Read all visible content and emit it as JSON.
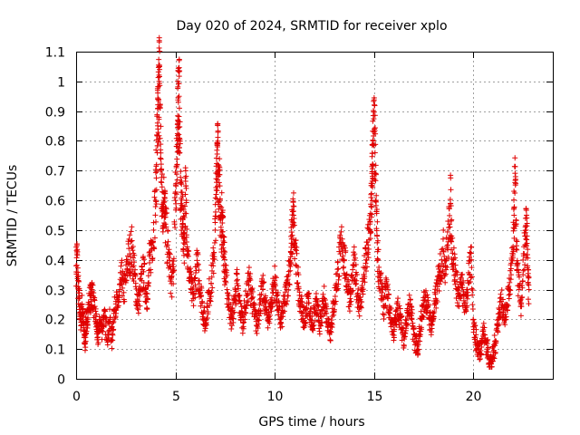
{
  "chart_data": {
    "type": "scatter",
    "title": "Day 020 of 2024, SRMTID for receiver xplo",
    "xlabel": "GPS time / hours",
    "ylabel": "SRMTID / TECUs",
    "xlim": [
      0,
      24
    ],
    "ylim": [
      0,
      1.1
    ],
    "xticks": [
      0,
      5,
      10,
      15,
      20
    ],
    "xtick_labels": [
      "0",
      "5",
      "10",
      "15",
      "20"
    ],
    "yticks": [
      0,
      0.1,
      0.2,
      0.3,
      0.4,
      0.5,
      0.6,
      0.7,
      0.8,
      0.9,
      1,
      1.1
    ],
    "ytick_labels": [
      "0",
      "0.1",
      "0.2",
      "0.3",
      "0.4",
      "0.5",
      "0.6",
      "0.7",
      "0.8",
      "0.9",
      "1",
      "1.1"
    ],
    "grid": true,
    "marker": "+",
    "color": "#e00000",
    "x_range": [
      0,
      22.8
    ],
    "series": [
      {
        "name": "SRMTID",
        "points": [
          [
            0.0,
            0.38
          ],
          [
            0.05,
            0.42
          ],
          [
            0.1,
            0.31
          ],
          [
            0.15,
            0.27
          ],
          [
            0.2,
            0.22
          ],
          [
            0.25,
            0.19
          ],
          [
            0.3,
            0.25
          ],
          [
            0.35,
            0.21
          ],
          [
            0.4,
            0.15
          ],
          [
            0.45,
            0.12
          ],
          [
            0.5,
            0.18
          ],
          [
            0.55,
            0.2
          ],
          [
            0.6,
            0.23
          ],
          [
            0.7,
            0.28
          ],
          [
            0.75,
            0.26
          ],
          [
            0.8,
            0.3
          ],
          [
            0.9,
            0.24
          ],
          [
            1.0,
            0.2
          ],
          [
            1.05,
            0.16
          ],
          [
            1.1,
            0.14
          ],
          [
            1.2,
            0.19
          ],
          [
            1.3,
            0.17
          ],
          [
            1.4,
            0.21
          ],
          [
            1.5,
            0.18
          ],
          [
            1.6,
            0.15
          ],
          [
            1.7,
            0.2
          ],
          [
            1.8,
            0.13
          ],
          [
            1.9,
            0.22
          ],
          [
            2.0,
            0.26
          ],
          [
            2.1,
            0.24
          ],
          [
            2.2,
            0.3
          ],
          [
            2.3,
            0.34
          ],
          [
            2.4,
            0.29
          ],
          [
            2.5,
            0.33
          ],
          [
            2.6,
            0.4
          ],
          [
            2.7,
            0.42
          ],
          [
            2.8,
            0.44
          ],
          [
            2.9,
            0.38
          ],
          [
            3.0,
            0.31
          ],
          [
            3.1,
            0.25
          ],
          [
            3.2,
            0.28
          ],
          [
            3.3,
            0.33
          ],
          [
            3.4,
            0.36
          ],
          [
            3.5,
            0.3
          ],
          [
            3.6,
            0.27
          ],
          [
            3.7,
            0.39
          ],
          [
            3.8,
            0.45
          ],
          [
            3.9,
            0.5
          ],
          [
            4.0,
            0.6
          ],
          [
            4.05,
            0.72
          ],
          [
            4.1,
            0.86
          ],
          [
            4.12,
            0.84
          ],
          [
            4.15,
            0.94
          ],
          [
            4.18,
            1.0
          ],
          [
            4.2,
            1.04
          ],
          [
            4.25,
            0.77
          ],
          [
            4.3,
            0.66
          ],
          [
            4.35,
            0.58
          ],
          [
            4.4,
            0.6
          ],
          [
            4.45,
            0.61
          ],
          [
            4.5,
            0.52
          ],
          [
            4.6,
            0.45
          ],
          [
            4.7,
            0.38
          ],
          [
            4.8,
            0.32
          ],
          [
            4.9,
            0.36
          ],
          [
            5.0,
            0.6
          ],
          [
            5.05,
            0.71
          ],
          [
            5.1,
            0.8
          ],
          [
            5.12,
            0.87
          ],
          [
            5.15,
            0.93
          ],
          [
            5.18,
            0.95
          ],
          [
            5.2,
            0.91
          ],
          [
            5.25,
            0.66
          ],
          [
            5.3,
            0.57
          ],
          [
            5.35,
            0.54
          ],
          [
            5.4,
            0.49
          ],
          [
            5.45,
            0.47
          ],
          [
            5.5,
            0.62
          ],
          [
            5.55,
            0.6
          ],
          [
            5.6,
            0.42
          ],
          [
            5.7,
            0.36
          ],
          [
            5.8,
            0.3
          ],
          [
            5.9,
            0.27
          ],
          [
            6.0,
            0.34
          ],
          [
            6.1,
            0.38
          ],
          [
            6.2,
            0.33
          ],
          [
            6.3,
            0.28
          ],
          [
            6.4,
            0.22
          ],
          [
            6.5,
            0.18
          ],
          [
            6.6,
            0.24
          ],
          [
            6.7,
            0.29
          ],
          [
            6.8,
            0.32
          ],
          [
            6.9,
            0.38
          ],
          [
            7.0,
            0.5
          ],
          [
            7.05,
            0.62
          ],
          [
            7.1,
            0.79
          ],
          [
            7.12,
            0.78
          ],
          [
            7.15,
            0.72
          ],
          [
            7.2,
            0.66
          ],
          [
            7.25,
            0.58
          ],
          [
            7.3,
            0.5
          ],
          [
            7.35,
            0.55
          ],
          [
            7.4,
            0.48
          ],
          [
            7.45,
            0.42
          ],
          [
            7.5,
            0.36
          ],
          [
            7.6,
            0.3
          ],
          [
            7.7,
            0.25
          ],
          [
            7.8,
            0.2
          ],
          [
            7.9,
            0.22
          ],
          [
            8.0,
            0.28
          ],
          [
            8.1,
            0.32
          ],
          [
            8.2,
            0.26
          ],
          [
            8.3,
            0.22
          ],
          [
            8.4,
            0.19
          ],
          [
            8.5,
            0.24
          ],
          [
            8.6,
            0.28
          ],
          [
            8.7,
            0.33
          ],
          [
            8.8,
            0.3
          ],
          [
            8.9,
            0.25
          ],
          [
            9.0,
            0.21
          ],
          [
            9.1,
            0.18
          ],
          [
            9.2,
            0.23
          ],
          [
            9.3,
            0.27
          ],
          [
            9.4,
            0.3
          ],
          [
            9.5,
            0.26
          ],
          [
            9.6,
            0.22
          ],
          [
            9.7,
            0.2
          ],
          [
            9.8,
            0.25
          ],
          [
            9.9,
            0.29
          ],
          [
            10.0,
            0.33
          ],
          [
            10.1,
            0.28
          ],
          [
            10.2,
            0.23
          ],
          [
            10.3,
            0.19
          ],
          [
            10.4,
            0.22
          ],
          [
            10.5,
            0.26
          ],
          [
            10.6,
            0.3
          ],
          [
            10.7,
            0.35
          ],
          [
            10.8,
            0.41
          ],
          [
            10.85,
            0.47
          ],
          [
            10.9,
            0.52
          ],
          [
            10.95,
            0.55
          ],
          [
            11.0,
            0.44
          ],
          [
            11.1,
            0.38
          ],
          [
            11.2,
            0.31
          ],
          [
            11.3,
            0.26
          ],
          [
            11.4,
            0.22
          ],
          [
            11.5,
            0.19
          ],
          [
            11.6,
            0.24
          ],
          [
            11.7,
            0.27
          ],
          [
            11.8,
            0.21
          ],
          [
            11.9,
            0.18
          ],
          [
            12.0,
            0.22
          ],
          [
            12.1,
            0.25
          ],
          [
            12.2,
            0.21
          ],
          [
            12.3,
            0.18
          ],
          [
            12.4,
            0.23
          ],
          [
            12.5,
            0.27
          ],
          [
            12.6,
            0.22
          ],
          [
            12.7,
            0.19
          ],
          [
            12.8,
            0.16
          ],
          [
            12.9,
            0.21
          ],
          [
            13.0,
            0.26
          ],
          [
            13.1,
            0.32
          ],
          [
            13.2,
            0.37
          ],
          [
            13.3,
            0.42
          ],
          [
            13.4,
            0.47
          ],
          [
            13.5,
            0.4
          ],
          [
            13.6,
            0.35
          ],
          [
            13.7,
            0.3
          ],
          [
            13.8,
            0.27
          ],
          [
            13.9,
            0.33
          ],
          [
            14.0,
            0.38
          ],
          [
            14.1,
            0.32
          ],
          [
            14.2,
            0.28
          ],
          [
            14.3,
            0.24
          ],
          [
            14.4,
            0.3
          ],
          [
            14.5,
            0.35
          ],
          [
            14.6,
            0.4
          ],
          [
            14.7,
            0.45
          ],
          [
            14.8,
            0.5
          ],
          [
            14.85,
            0.58
          ],
          [
            14.9,
            0.65
          ],
          [
            14.92,
            0.72
          ],
          [
            14.95,
            0.8
          ],
          [
            15.0,
            0.83
          ],
          [
            15.05,
            0.76
          ],
          [
            15.1,
            0.6
          ],
          [
            15.15,
            0.48
          ],
          [
            15.2,
            0.4
          ],
          [
            15.3,
            0.33
          ],
          [
            15.4,
            0.28
          ],
          [
            15.5,
            0.24
          ],
          [
            15.6,
            0.3
          ],
          [
            15.7,
            0.27
          ],
          [
            15.8,
            0.22
          ],
          [
            15.9,
            0.19
          ],
          [
            16.0,
            0.16
          ],
          [
            16.1,
            0.2
          ],
          [
            16.2,
            0.24
          ],
          [
            16.3,
            0.21
          ],
          [
            16.4,
            0.17
          ],
          [
            16.5,
            0.14
          ],
          [
            16.6,
            0.18
          ],
          [
            16.7,
            0.22
          ],
          [
            16.8,
            0.25
          ],
          [
            16.9,
            0.2
          ],
          [
            17.0,
            0.15
          ],
          [
            17.1,
            0.12
          ],
          [
            17.2,
            0.08
          ],
          [
            17.3,
            0.16
          ],
          [
            17.4,
            0.21
          ],
          [
            17.5,
            0.25
          ],
          [
            17.6,
            0.28
          ],
          [
            17.7,
            0.24
          ],
          [
            17.8,
            0.2
          ],
          [
            17.9,
            0.18
          ],
          [
            18.0,
            0.22
          ],
          [
            18.1,
            0.27
          ],
          [
            18.2,
            0.31
          ],
          [
            18.3,
            0.36
          ],
          [
            18.4,
            0.4
          ],
          [
            18.5,
            0.43
          ],
          [
            18.6,
            0.38
          ],
          [
            18.7,
            0.45
          ],
          [
            18.8,
            0.52
          ],
          [
            18.85,
            0.59
          ],
          [
            18.9,
            0.48
          ],
          [
            19.0,
            0.4
          ],
          [
            19.1,
            0.35
          ],
          [
            19.2,
            0.3
          ],
          [
            19.3,
            0.27
          ],
          [
            19.4,
            0.32
          ],
          [
            19.5,
            0.28
          ],
          [
            19.6,
            0.24
          ],
          [
            19.7,
            0.3
          ],
          [
            19.8,
            0.35
          ],
          [
            19.9,
            0.4
          ],
          [
            20.0,
            0.2
          ],
          [
            20.1,
            0.14
          ],
          [
            20.2,
            0.11
          ],
          [
            20.3,
            0.09
          ],
          [
            20.4,
            0.12
          ],
          [
            20.5,
            0.16
          ],
          [
            20.6,
            0.13
          ],
          [
            20.7,
            0.1
          ],
          [
            20.8,
            0.07
          ],
          [
            20.9,
            0.05
          ],
          [
            21.0,
            0.08
          ],
          [
            21.1,
            0.12
          ],
          [
            21.2,
            0.18
          ],
          [
            21.3,
            0.22
          ],
          [
            21.4,
            0.26
          ],
          [
            21.5,
            0.24
          ],
          [
            21.6,
            0.2
          ],
          [
            21.7,
            0.25
          ],
          [
            21.8,
            0.3
          ],
          [
            21.9,
            0.35
          ],
          [
            22.0,
            0.42
          ],
          [
            22.05,
            0.55
          ],
          [
            22.1,
            0.66
          ],
          [
            22.15,
            0.52
          ],
          [
            22.2,
            0.38
          ],
          [
            22.3,
            0.3
          ],
          [
            22.4,
            0.25
          ],
          [
            22.5,
            0.35
          ],
          [
            22.6,
            0.45
          ],
          [
            22.65,
            0.5
          ],
          [
            22.7,
            0.48
          ],
          [
            22.75,
            0.32
          ],
          [
            22.8,
            0.3
          ]
        ]
      }
    ]
  }
}
